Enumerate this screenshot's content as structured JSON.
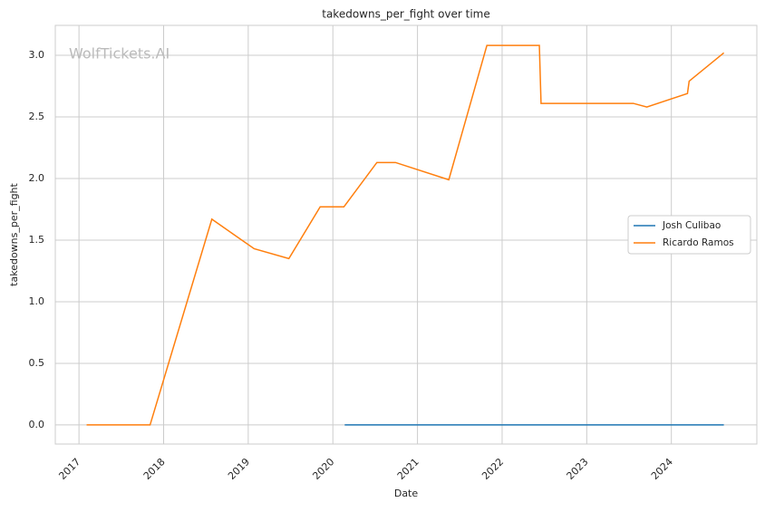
{
  "chart_data": {
    "type": "line",
    "title": "takedowns_per_fight over time",
    "x_label": "Date",
    "y_label": "takedowns_per_fight",
    "watermark": "WolfTickets.AI",
    "xlim": [
      2016.72,
      2025.01
    ],
    "ylim": [
      -0.155,
      3.243
    ],
    "xticks": [
      2017,
      2018,
      2019,
      2020,
      2021,
      2022,
      2023,
      2024
    ],
    "yticks": [
      {
        "value": 0,
        "label": "0.0"
      },
      {
        "value": 0.5,
        "label": "0.5"
      },
      {
        "value": 1,
        "label": "1.0"
      },
      {
        "value": 1.5,
        "label": "1.5"
      },
      {
        "value": 2,
        "label": "2.0"
      },
      {
        "value": 2.5,
        "label": "2.5"
      },
      {
        "value": 3,
        "label": "3.0"
      }
    ],
    "grid": true,
    "legend": "right",
    "series": [
      {
        "name": "Josh Culibao",
        "color": "#1f77b4",
        "x": [
          2020.14,
          2024.62
        ],
        "values": [
          0,
          0
        ]
      },
      {
        "name": "Ricardo Ramos",
        "color": "#ff7f0e",
        "x": [
          2017.09,
          2017.84,
          2018.57,
          2019.07,
          2019.48,
          2019.85,
          2020.13,
          2020.52,
          2020.74,
          2021.37,
          2021.82,
          2022.44,
          2022.46,
          2023.55,
          2023.71,
          2024.19,
          2024.21,
          2024.62
        ],
        "values": [
          0,
          0,
          1.67,
          1.43,
          1.35,
          1.77,
          1.77,
          2.13,
          2.13,
          1.99,
          3.08,
          3.08,
          2.61,
          2.61,
          2.58,
          2.69,
          2.79,
          3.02
        ]
      }
    ]
  }
}
